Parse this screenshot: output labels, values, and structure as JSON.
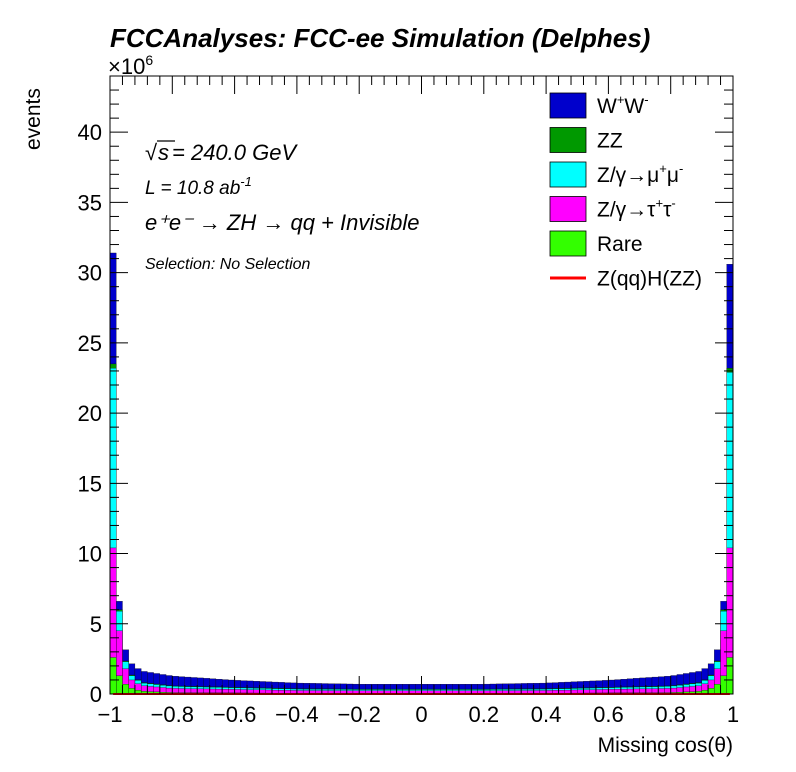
{
  "chart_data": {
    "type": "histogram-stacked",
    "title": "FCCAnalyses: FCC-ee Simulation (Delphes)",
    "xlabel": "Missing cos(θ)",
    "ylabel": "events",
    "y_exponent_label": "×10",
    "y_exponent": "6",
    "xlim": [
      -1,
      1
    ],
    "ylim": [
      0,
      44
    ],
    "x_ticks": [
      "−1",
      "−0.8",
      "−0.6",
      "−0.4",
      "−0.2",
      "0",
      "0.2",
      "0.4",
      "0.6",
      "0.8",
      "1"
    ],
    "y_ticks": [
      "0",
      "5",
      "10",
      "15",
      "20",
      "25",
      "30",
      "35",
      "40"
    ],
    "annotations": {
      "sqrt_symbol": "√",
      "sqrt_s": "s",
      "energy": " = 240.0 GeV",
      "lumi_base": "L = 10.8 ab",
      "lumi_exp": "-1",
      "process": "e⁺e⁻ → ZH → qq + Invisible",
      "selection": "Selection: No Selection"
    },
    "x_bins_center": [
      -0.99,
      -0.97,
      -0.95,
      -0.93,
      -0.9,
      -0.8,
      -0.6,
      -0.4,
      -0.2,
      0.0,
      0.2,
      0.4,
      0.6,
      0.8,
      0.9,
      0.93,
      0.95,
      0.97,
      0.99
    ],
    "series": [
      {
        "name": "Rare",
        "color": "#33ff00",
        "values": [
          2.6,
          1.3,
          0.7,
          0.4,
          0.2,
          0.1,
          0.08,
          0.05,
          0.04,
          0.04,
          0.04,
          0.05,
          0.08,
          0.1,
          0.2,
          0.4,
          0.7,
          1.3,
          2.6
        ]
      },
      {
        "name": "Z/γ→τ⁺τ⁻",
        "color": "#ff00ff",
        "values": [
          7.8,
          3.2,
          1.1,
          0.6,
          0.4,
          0.3,
          0.25,
          0.2,
          0.2,
          0.2,
          0.2,
          0.2,
          0.25,
          0.3,
          0.4,
          0.6,
          1.1,
          3.2,
          7.8
        ]
      },
      {
        "name": "Z/γ→μ⁺μ⁻",
        "color": "#00ffff",
        "values": [
          12.8,
          1.4,
          0.5,
          0.3,
          0.2,
          0.15,
          0.12,
          0.1,
          0.08,
          0.08,
          0.08,
          0.1,
          0.12,
          0.15,
          0.2,
          0.3,
          0.5,
          1.4,
          12.5
        ]
      },
      {
        "name": "ZZ",
        "color": "#009900",
        "values": [
          0.3,
          0.1,
          0.05,
          0.05,
          0.04,
          0.03,
          0.03,
          0.03,
          0.03,
          0.03,
          0.03,
          0.03,
          0.03,
          0.03,
          0.04,
          0.05,
          0.05,
          0.1,
          0.3
        ]
      },
      {
        "name": "W⁺W⁻",
        "color": "#0000cc",
        "values": [
          7.9,
          0.6,
          0.8,
          0.8,
          0.8,
          0.7,
          0.5,
          0.4,
          0.35,
          0.35,
          0.35,
          0.4,
          0.5,
          0.7,
          0.8,
          0.8,
          0.8,
          0.6,
          7.4
        ]
      },
      {
        "name": "Z(qq)H(ZZ)",
        "color": "#ff0000",
        "type": "line",
        "values": [
          0.0,
          0.0,
          0.0,
          0.0,
          0.0,
          0.0,
          0.0,
          0.0,
          0.0,
          0.0,
          0.0,
          0.0,
          0.0,
          0.0,
          0.0,
          0.0,
          0.0,
          0.0,
          0.0
        ]
      }
    ],
    "legend": [
      {
        "label_base": "W",
        "sup1": "+",
        "mid": "W",
        "sup2": "-",
        "color": "#0000cc",
        "kind": "box"
      },
      {
        "label_base": "ZZ",
        "sup1": "",
        "mid": "",
        "sup2": "",
        "color": "#009900",
        "kind": "box"
      },
      {
        "label_base": "Z/γ→μ",
        "sup1": "+",
        "mid": "μ",
        "sup2": "-",
        "color": "#00ffff",
        "kind": "box"
      },
      {
        "label_base": "Z/γ→τ",
        "sup1": "+",
        "mid": "τ",
        "sup2": "-",
        "color": "#ff00ff",
        "kind": "box"
      },
      {
        "label_base": "Rare",
        "sup1": "",
        "mid": "",
        "sup2": "",
        "color": "#33ff00",
        "kind": "box"
      },
      {
        "label_base": "Z(qq)H(ZZ)",
        "sup1": "",
        "mid": "",
        "sup2": "",
        "color": "#ff0000",
        "kind": "line"
      }
    ],
    "legend_position": "top-right",
    "grid": false
  }
}
